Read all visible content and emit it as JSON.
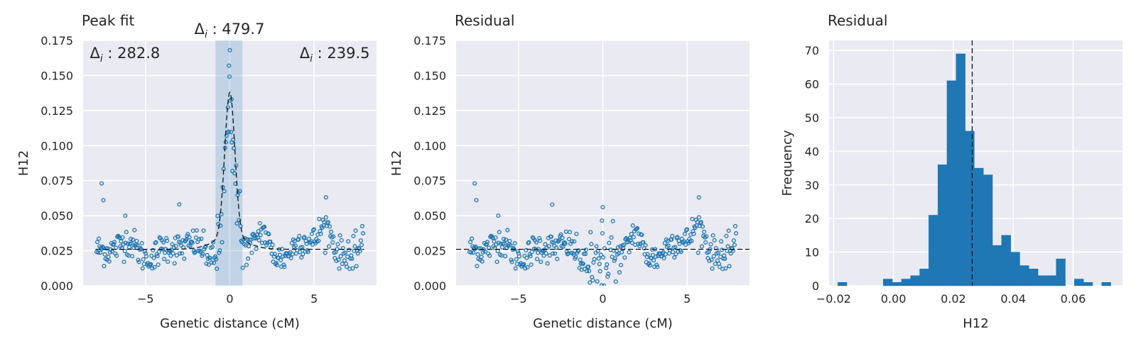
{
  "chart_data": [
    {
      "type": "scatter",
      "title": "Peak fit",
      "xlabel": "Genetic distance (cM)",
      "ylabel": "H12",
      "xlim": [
        -8.7,
        8.7
      ],
      "ylim": [
        0,
        0.175
      ],
      "xticks": [
        -5,
        0,
        5
      ],
      "xtick_labels": [
        "−5",
        "0",
        "5"
      ],
      "yticks": [
        0,
        0.025,
        0.05,
        0.075,
        0.1,
        0.125,
        0.15,
        0.175
      ],
      "ytick_labels": [
        "0.000",
        "0.025",
        "0.050",
        "0.075",
        "0.100",
        "0.125",
        "0.150",
        "0.175"
      ],
      "grid": true,
      "baseline": 0.026,
      "peak_window": [
        -0.85,
        0.75
      ],
      "fit_curve": [
        [
          -8,
          0.026
        ],
        [
          -2.5,
          0.0265
        ],
        [
          -1.5,
          0.029
        ],
        [
          -1.0,
          0.034
        ],
        [
          -0.7,
          0.045
        ],
        [
          -0.4,
          0.075
        ],
        [
          -0.2,
          0.11
        ],
        [
          0,
          0.13
        ],
        [
          0.2,
          0.11
        ],
        [
          0.4,
          0.075
        ],
        [
          0.7,
          0.045
        ],
        [
          1.0,
          0.034
        ],
        [
          1.5,
          0.029
        ],
        [
          2.5,
          0.0265
        ],
        [
          8,
          0.026
        ]
      ],
      "marker_color": "#1f77b4",
      "annotations": [
        {
          "prefix": "Δ",
          "sub": "i",
          "text": " : 282.8",
          "x": -8.3,
          "y": 0.166,
          "anchor": "start"
        },
        {
          "prefix": "Δ",
          "sub": "i",
          "text": " : 479.7",
          "x": -2.1,
          "y": 0.183,
          "anchor": "start"
        },
        {
          "prefix": "Δ",
          "sub": "i",
          "text": " : 239.5",
          "x": 8.3,
          "y": 0.166,
          "anchor": "end"
        }
      ]
    },
    {
      "type": "scatter",
      "title": "Residual",
      "xlabel": "Genetic distance (cM)",
      "ylabel": "H12",
      "xlim": [
        -8.7,
        8.7
      ],
      "ylim": [
        0,
        0.175
      ],
      "xticks": [
        -5,
        0,
        5
      ],
      "xtick_labels": [
        "−5",
        "0",
        "5"
      ],
      "yticks": [
        0,
        0.025,
        0.05,
        0.075,
        0.1,
        0.125,
        0.15,
        0.175
      ],
      "ytick_labels": [
        "0.000",
        "0.025",
        "0.050",
        "0.075",
        "0.100",
        "0.125",
        "0.150",
        "0.175"
      ],
      "grid": true,
      "baseline": 0.026,
      "marker_color": "#1f77b4"
    },
    {
      "type": "bar",
      "title": "Residual",
      "xlabel": "H12",
      "ylabel": "Frequency",
      "xlim": [
        -0.0215,
        0.0765
      ],
      "ylim": [
        0,
        73
      ],
      "xticks": [
        -0.02,
        0,
        0.02,
        0.04,
        0.06
      ],
      "xtick_labels": [
        "−0.02",
        "0.00",
        "0.02",
        "0.04",
        "0.06"
      ],
      "yticks": [
        0,
        10,
        20,
        30,
        40,
        50,
        60,
        70
      ],
      "ytick_labels": [
        "0",
        "10",
        "20",
        "30",
        "40",
        "50",
        "60",
        "70"
      ],
      "grid": true,
      "bin_start": -0.0186,
      "bin_width": 0.00304,
      "counts": [
        1,
        0,
        0,
        0,
        0,
        2,
        1,
        2,
        3,
        5,
        21,
        36,
        61,
        69,
        46,
        35,
        33,
        12,
        15,
        10,
        6,
        5,
        3,
        3,
        8,
        0,
        2,
        1,
        0,
        1
      ],
      "vline": 0.0263,
      "bar_color": "#1f77b4"
    }
  ]
}
